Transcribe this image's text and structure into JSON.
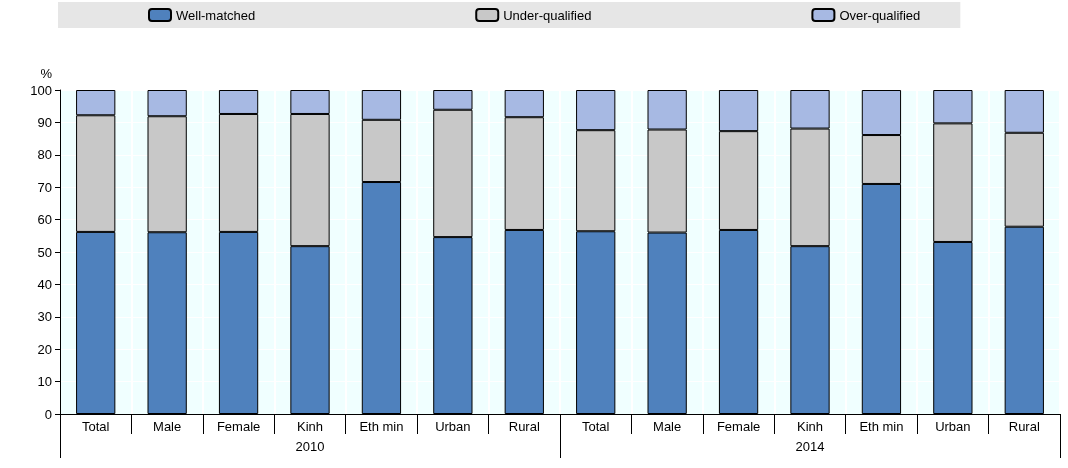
{
  "chart_data": {
    "type": "bar",
    "stacked": true,
    "ylabel": "%",
    "categories": [
      "Total",
      "Male",
      "Female",
      "Kinh",
      "Eth min",
      "Urban",
      "Rural",
      "Total",
      "Male",
      "Female",
      "Kinh",
      "Eth min",
      "Urban",
      "Rural"
    ],
    "annotations": [
      "2010",
      "2014"
    ],
    "series": [
      {
        "name": "Well-matched",
        "color": "#4f81bd",
        "values": [
          56.2,
          56.1,
          56.2,
          51.8,
          71.6,
          54.6,
          56.8,
          56.4,
          56.0,
          56.8,
          51.8,
          71.0,
          53.1,
          57.8
        ]
      },
      {
        "name": "Under-qualified",
        "color": "#c8c8c8",
        "values": [
          36.0,
          35.8,
          36.4,
          40.8,
          19.2,
          39.3,
          34.8,
          31.2,
          31.8,
          30.5,
          36.3,
          15.1,
          36.6,
          29.0
        ]
      },
      {
        "name": "Over-qualified",
        "color": "#a7b9e3",
        "values": [
          7.8,
          8.1,
          7.4,
          7.4,
          9.2,
          6.1,
          8.4,
          12.4,
          12.2,
          12.7,
          11.9,
          13.9,
          10.3,
          13.2
        ]
      }
    ],
    "ylim": [
      0,
      100
    ],
    "yticks": [
      0,
      10,
      20,
      30,
      40,
      50,
      60,
      70,
      80,
      90,
      100
    ],
    "grid": true,
    "legend": "top"
  }
}
